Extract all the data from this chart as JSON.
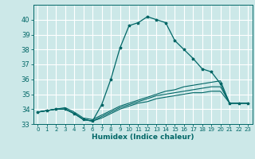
{
  "xlabel": "Humidex (Indice chaleur)",
  "bg_color": "#cce8e8",
  "grid_color": "#ffffff",
  "line_color": "#006666",
  "xlim": [
    -0.5,
    23.5
  ],
  "ylim": [
    33.0,
    41.0
  ],
  "yticks": [
    33,
    34,
    35,
    36,
    37,
    38,
    39,
    40
  ],
  "xticks": [
    0,
    1,
    2,
    3,
    4,
    5,
    6,
    7,
    8,
    9,
    10,
    11,
    12,
    13,
    14,
    15,
    16,
    17,
    18,
    19,
    20,
    21,
    22,
    23
  ],
  "series": [
    [
      33.8,
      33.9,
      34.0,
      34.0,
      33.7,
      33.3,
      33.2,
      34.3,
      36.0,
      38.1,
      39.6,
      39.8,
      40.2,
      40.0,
      39.8,
      38.6,
      38.0,
      37.4,
      36.7,
      36.5,
      35.7,
      34.4,
      34.4,
      34.4
    ],
    [
      33.8,
      33.9,
      34.0,
      34.1,
      33.8,
      33.4,
      33.3,
      33.6,
      33.9,
      34.2,
      34.4,
      34.6,
      34.8,
      35.0,
      35.2,
      35.3,
      35.5,
      35.6,
      35.7,
      35.8,
      35.9,
      34.4,
      34.4,
      34.4
    ],
    [
      33.8,
      33.9,
      34.0,
      34.0,
      33.7,
      33.3,
      33.2,
      33.5,
      33.8,
      34.1,
      34.3,
      34.5,
      34.7,
      34.9,
      35.0,
      35.1,
      35.2,
      35.3,
      35.4,
      35.5,
      35.5,
      34.4,
      34.4,
      34.4
    ],
    [
      33.8,
      33.9,
      34.0,
      34.0,
      33.7,
      33.3,
      33.2,
      33.4,
      33.7,
      34.0,
      34.2,
      34.4,
      34.5,
      34.7,
      34.8,
      34.9,
      35.0,
      35.1,
      35.1,
      35.2,
      35.2,
      34.4,
      34.4,
      34.4
    ]
  ]
}
